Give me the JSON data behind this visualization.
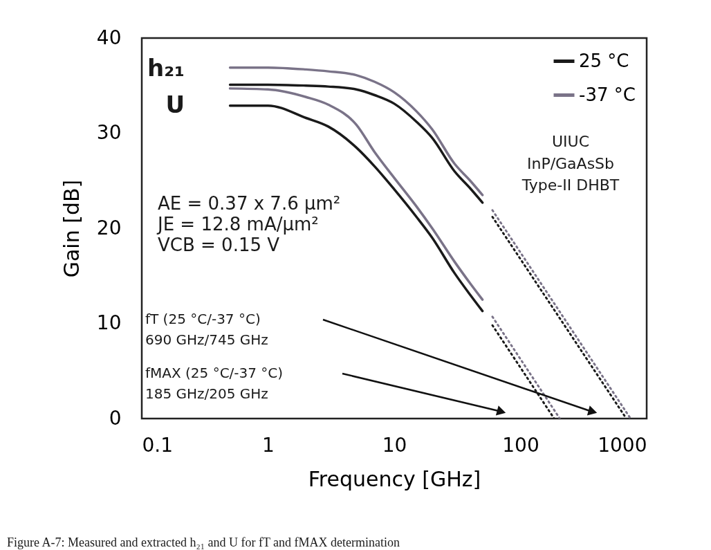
{
  "chart_data": {
    "type": "line",
    "xlabel": "Frequency [GHz]",
    "ylabel": "Gain [dB]",
    "log": "x",
    "xlim": [
      0.1,
      1000
    ],
    "xticks": [
      0.1,
      1,
      10,
      100,
      1000
    ],
    "ylim": [
      0,
      40
    ],
    "yticks": [
      0,
      10,
      20,
      30,
      40
    ],
    "grid": false,
    "legend": "top right",
    "line_style": "solid",
    "series": [
      {
        "name": "25 °C",
        "color": "#1a1a1a",
        "x": [
          0.5,
          1,
          2,
          3,
          5,
          7,
          10,
          15,
          20,
          30,
          40,
          50
        ],
        "values": [
          35.1,
          35.1,
          35.0,
          34.9,
          34.6,
          34.0,
          33.1,
          31.2,
          29.5,
          26.0,
          24.2,
          22.7
        ]
      },
      {
        "name": "-37 °C",
        "color": "#7a7388",
        "x": [
          0.5,
          1,
          2,
          3,
          5,
          7,
          10,
          15,
          20,
          30,
          40,
          50
        ],
        "values": [
          36.9,
          36.9,
          36.7,
          36.5,
          36.1,
          35.4,
          34.3,
          32.3,
          30.4,
          26.8,
          25.0,
          23.5
        ]
      },
      {
        "color": "#1a1a1a",
        "x": [
          0.5,
          1,
          2,
          3,
          5,
          7,
          10,
          15,
          20,
          30,
          40,
          50
        ],
        "values": [
          32.9,
          32.9,
          31.6,
          30.7,
          28.5,
          26.5,
          24.1,
          21.2,
          19.0,
          15.3,
          13.0,
          11.3
        ]
      },
      {
        "color": "#7a7388",
        "x": [
          0.5,
          1,
          2,
          3,
          5,
          7,
          10,
          15,
          20,
          30,
          40,
          50
        ],
        "values": [
          34.7,
          34.6,
          33.8,
          33.0,
          30.9,
          28.0,
          25.3,
          22.3,
          20.0,
          16.5,
          14.2,
          12.5
        ]
      },
      {
        "color": "#1a1a1a",
        "line_style": "dotted",
        "x": [
          60,
          690
        ],
        "values": [
          21.2,
          0
        ]
      },
      {
        "color": "#7a7388",
        "line_style": "dotted",
        "x": [
          60,
          745
        ],
        "values": [
          21.9,
          0
        ]
      },
      {
        "color": "#1a1a1a",
        "line_style": "dotted",
        "x": [
          60,
          185
        ],
        "values": [
          9.8,
          0
        ]
      },
      {
        "color": "#7a7388",
        "line_style": "dotted",
        "x": [
          60,
          205
        ],
        "values": [
          10.7,
          0
        ]
      }
    ],
    "annotations": [
      "h₂₁",
      "U",
      "AE = 0.37 x 7.6 µm²",
      "JE = 12.8 mA/µm²",
      "VCB = 0.15 V",
      "UIUC",
      "InP/GaAsSb",
      "Type-II DHBT",
      "fT (25 °C/-37 °C)",
      "690 GHz/745 GHz",
      "fMAX (25 °C/-37 °C)",
      "185 GHz/205 GHz",
      "Figure A-7: Measured and extracted h₂₁ and U for fT and fMAX determination"
    ]
  }
}
